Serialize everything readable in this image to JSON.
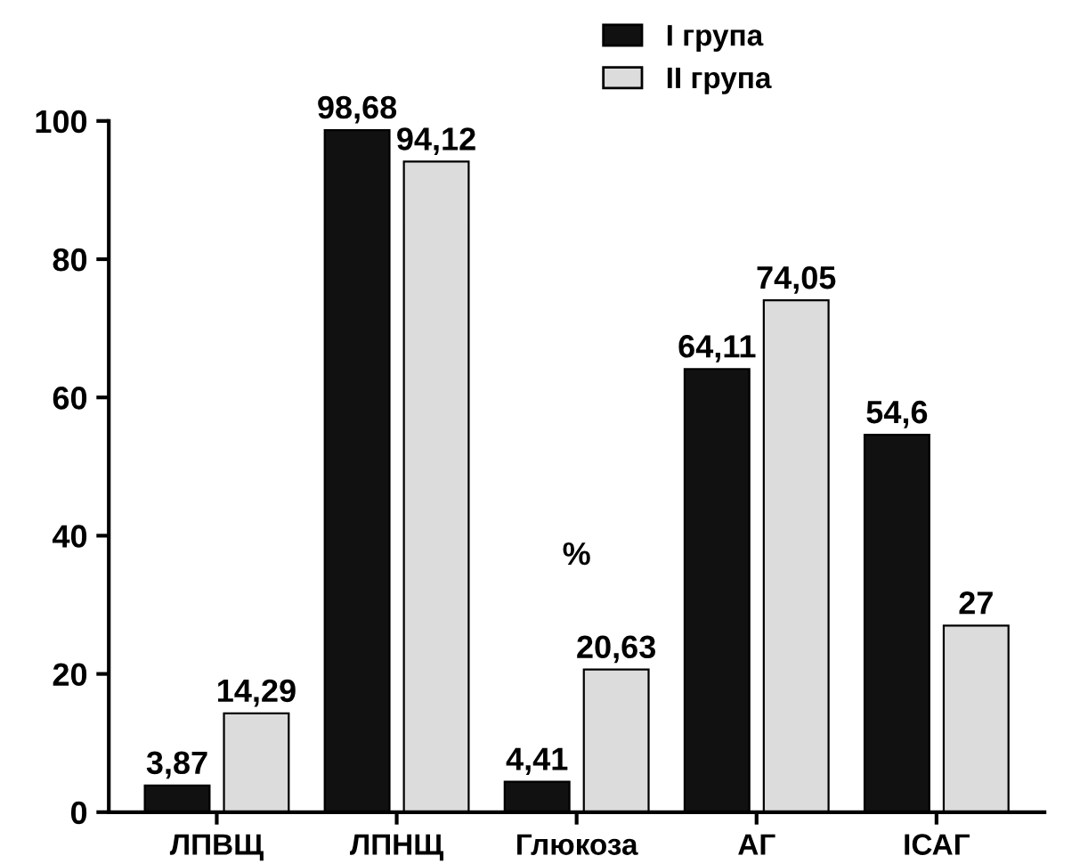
{
  "chart_data": {
    "type": "bar",
    "categories": [
      "ЛПВЩ",
      "ЛПНЩ",
      "Глюкоза",
      "АГ",
      "ІСАГ"
    ],
    "series": [
      {
        "name": "I група",
        "color": "#111111",
        "values": [
          3.87,
          98.68,
          4.41,
          64.11,
          54.6
        ],
        "value_labels": [
          "3,87",
          "98,68",
          "4,41",
          "64,11",
          "54,6"
        ]
      },
      {
        "name": "II група",
        "color": "#dcdcdc",
        "values": [
          14.29,
          94.12,
          20.63,
          74.05,
          27
        ],
        "value_labels": [
          "14,29",
          "94,12",
          "20,63",
          "74,05",
          "27"
        ]
      }
    ],
    "ylim": [
      0,
      100
    ],
    "yticks": [
      0,
      20,
      40,
      60,
      80,
      100
    ],
    "annotations": [
      "%"
    ],
    "legend": "top right",
    "grid": false
  }
}
